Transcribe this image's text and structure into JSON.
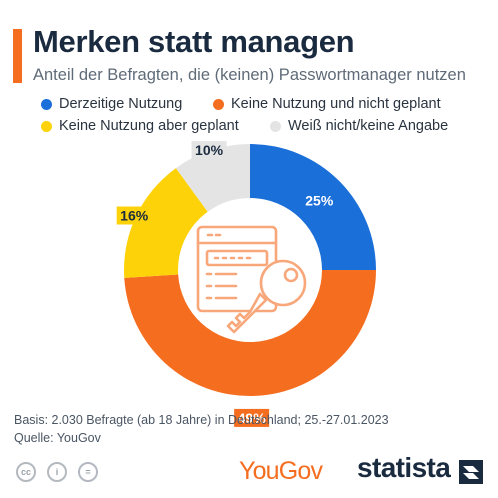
{
  "header": {
    "title": "Merken statt managen",
    "subtitle": "Anteil der Befragten, die (keinen) Passwortmanager nutzen"
  },
  "chart_data": {
    "type": "pie",
    "variant": "donut",
    "series": [
      {
        "name": "Derzeitige Nutzung",
        "value": 25,
        "label": "25%",
        "color": "#1b6fd9"
      },
      {
        "name": "Keine Nutzung und nicht geplant",
        "value": 49,
        "label": "49%",
        "color": "#f56d1f"
      },
      {
        "name": "Keine Nutzung aber geplant",
        "value": 16,
        "label": "16%",
        "color": "#fdd209"
      },
      {
        "name": "Weiß nicht/keine Angabe",
        "value": 10,
        "label": "10%",
        "color": "#e4e4e4"
      }
    ],
    "legend_placement": "top",
    "center_icon": "password-key-icon"
  },
  "footer": {
    "basis": "Basis: 2.030 Befragte (ab 18 Jahre) in Deutschland; 25.-27.01.2023",
    "source": "Quelle: YouGov",
    "license_icons": [
      "cc-icon",
      "person-icon",
      "equals-icon"
    ],
    "license_glyphs": [
      "cc",
      "i",
      "="
    ],
    "partner_logo": "YouGov",
    "brand_logo": "statista"
  }
}
